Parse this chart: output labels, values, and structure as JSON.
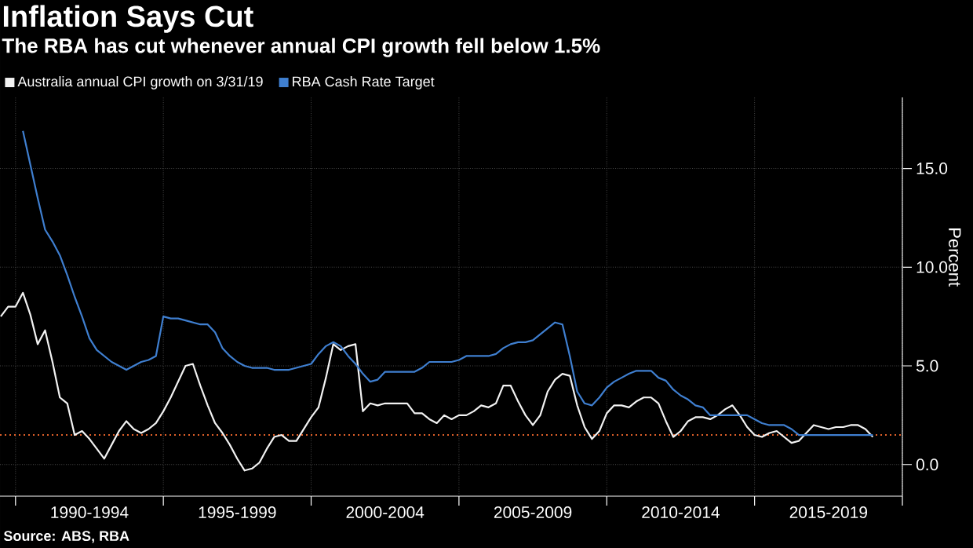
{
  "chart_data": {
    "type": "line",
    "title": "Inflation Says Cut",
    "subtitle": "The RBA has cut whenever annual CPI growth fell below 1.5%",
    "ylabel": "Percent",
    "annotations": [
      "Source: ABS, RBA"
    ],
    "categories": [
      null,
      null,
      null,
      null,
      null,
      null,
      null,
      null,
      null,
      null,
      null,
      null,
      "1990-1994",
      null,
      null,
      null,
      null,
      null,
      null,
      null,
      null,
      null,
      null,
      null,
      null,
      null,
      null,
      null,
      null,
      null,
      null,
      null,
      "1995-1999",
      null,
      null,
      null,
      null,
      null,
      null,
      null,
      null,
      null,
      null,
      null,
      null,
      null,
      null,
      null,
      null,
      null,
      null,
      null,
      "2000-2004",
      null,
      null,
      null,
      null,
      null,
      null,
      null,
      null,
      null,
      null,
      null,
      null,
      null,
      null,
      null,
      null,
      null,
      null,
      null,
      "2005-2009",
      null,
      null,
      null,
      null,
      null,
      null,
      null,
      null,
      null,
      null,
      null,
      null,
      null,
      null,
      null,
      null,
      null,
      null,
      null,
      "2010-2014",
      null,
      null,
      null,
      null,
      null,
      null,
      null,
      null,
      null,
      null,
      null,
      null,
      null,
      null,
      null,
      null,
      null,
      null,
      null,
      "2015-2019",
      null,
      null,
      null,
      null,
      null,
      null
    ],
    "ylim": [
      -1.6,
      18.6
    ],
    "yticks": [
      {
        "value": 0,
        "label": "0.0"
      },
      {
        "value": 5,
        "label": "5.0"
      },
      {
        "value": 10,
        "label": "10.0"
      },
      {
        "value": 15,
        "label": "15.0"
      }
    ],
    "grid": true,
    "legend": "top left",
    "marker": "none",
    "line_style": "solid",
    "ref_lines": [
      {
        "axis": "y",
        "value": 1.5,
        "color": "#e0602a",
        "line_style": "dotted"
      }
    ],
    "series": [
      {
        "name": "Australia annual CPI growth on 3/31/19",
        "color": "#f2f2f2",
        "values": [
          7.5,
          8.0,
          8.0,
          8.7,
          7.6,
          6.1,
          6.8,
          5.2,
          3.4,
          3.1,
          1.5,
          1.7,
          1.3,
          0.8,
          0.3,
          1.0,
          1.7,
          2.2,
          1.8,
          1.6,
          1.8,
          2.1,
          2.7,
          3.4,
          4.2,
          5.0,
          5.1,
          4.0,
          3.0,
          2.1,
          1.6,
          1.0,
          0.3,
          -0.3,
          -0.2,
          0.1,
          0.8,
          1.4,
          1.5,
          1.2,
          1.2,
          1.8,
          2.4,
          2.9,
          4.4,
          6.1,
          5.8,
          6.0,
          6.1,
          2.7,
          3.1,
          3.0,
          3.1,
          3.1,
          3.1,
          3.1,
          2.6,
          2.6,
          2.3,
          2.1,
          2.5,
          2.3,
          2.5,
          2.5,
          2.7,
          3.0,
          2.9,
          3.1,
          4.0,
          4.0,
          3.2,
          2.5,
          2.0,
          2.5,
          3.7,
          4.3,
          4.6,
          4.5,
          3.0,
          1.9,
          1.3,
          1.7,
          2.6,
          3.0,
          3.0,
          2.9,
          3.2,
          3.4,
          3.4,
          3.1,
          2.2,
          1.4,
          1.7,
          2.2,
          2.4,
          2.4,
          2.3,
          2.5,
          2.8,
          3.0,
          2.5,
          1.9,
          1.5,
          1.4,
          1.6,
          1.7,
          1.4,
          1.1,
          1.2,
          1.6,
          2.0,
          1.9,
          1.8,
          1.9,
          1.9,
          2.0,
          2.0,
          1.8,
          1.4
        ]
      },
      {
        "name": "RBA Cash Rate Target",
        "color": "#3f7fd0",
        "values": [
          null,
          null,
          null,
          16.9,
          15.2,
          13.5,
          11.9,
          11.3,
          10.6,
          9.6,
          8.5,
          7.5,
          6.4,
          5.8,
          5.5,
          5.2,
          5.0,
          4.8,
          5.0,
          5.2,
          5.3,
          5.5,
          7.5,
          7.4,
          7.4,
          7.3,
          7.2,
          7.1,
          7.1,
          6.7,
          5.9,
          5.5,
          5.2,
          5.0,
          4.9,
          4.9,
          4.9,
          4.8,
          4.8,
          4.8,
          4.9,
          5.0,
          5.1,
          5.6,
          6.0,
          6.2,
          6.0,
          5.5,
          5.1,
          4.6,
          4.2,
          4.3,
          4.7,
          4.7,
          4.7,
          4.7,
          4.7,
          4.9,
          5.2,
          5.2,
          5.2,
          5.2,
          5.3,
          5.5,
          5.5,
          5.5,
          5.5,
          5.6,
          5.9,
          6.1,
          6.2,
          6.2,
          6.3,
          6.6,
          6.9,
          7.2,
          7.1,
          5.5,
          3.7,
          3.1,
          3.0,
          3.4,
          3.9,
          4.2,
          4.4,
          4.6,
          4.75,
          4.75,
          4.75,
          4.4,
          4.25,
          3.8,
          3.5,
          3.3,
          3.0,
          2.9,
          2.5,
          2.5,
          2.5,
          2.5,
          2.5,
          2.5,
          2.3,
          2.1,
          2.0,
          2.0,
          2.0,
          1.8,
          1.5,
          1.5,
          1.5,
          1.5,
          1.5,
          1.5,
          1.5,
          1.5,
          1.5,
          1.5,
          1.5
        ]
      }
    ]
  }
}
